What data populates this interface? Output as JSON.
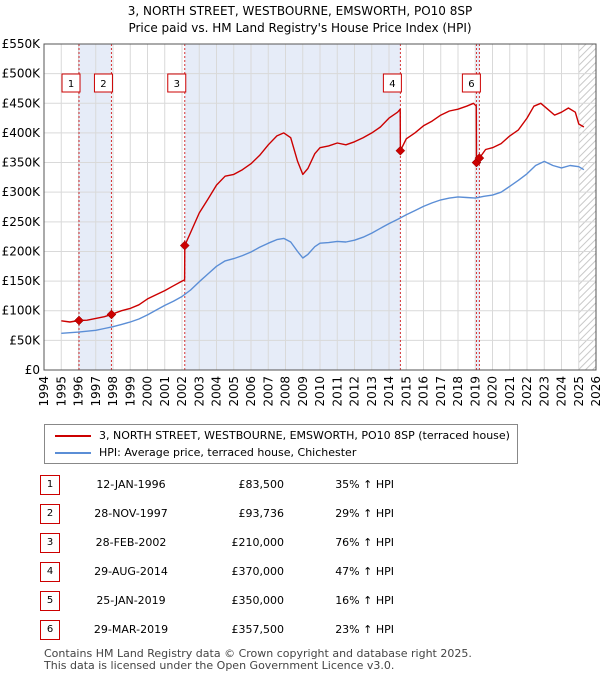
{
  "title_line1": "3, NORTH STREET, WESTBOURNE, EMSWORTH, PO10 8SP",
  "title_line2": "Price paid vs. HM Land Registry's House Price Index (HPI)",
  "colors": {
    "property": "#cc0000",
    "hpi": "#5b8ed6",
    "shade": "#e6ecf8",
    "grid": "#d9d9d9"
  },
  "chart_data": {
    "type": "line",
    "ylabel": "",
    "xlabel": "",
    "xlim": [
      1994,
      2026
    ],
    "ylim": [
      0,
      550000
    ],
    "y_ticks": [
      0,
      50000,
      100000,
      150000,
      200000,
      250000,
      300000,
      350000,
      400000,
      450000,
      500000,
      550000
    ],
    "y_tick_labels": [
      "£0",
      "£50K",
      "£100K",
      "£150K",
      "£200K",
      "£250K",
      "£300K",
      "£350K",
      "£400K",
      "£450K",
      "£500K",
      "£550K"
    ],
    "x_ticks": [
      1994,
      1995,
      1996,
      1997,
      1998,
      1999,
      2000,
      2001,
      2002,
      2003,
      2004,
      2005,
      2006,
      2007,
      2008,
      2009,
      2010,
      2011,
      2012,
      2013,
      2014,
      2015,
      2016,
      2017,
      2018,
      2019,
      2020,
      2021,
      2022,
      2023,
      2024,
      2025,
      2026
    ],
    "shaded_ranges": [
      [
        1996.03,
        1997.91
      ],
      [
        2002.16,
        2014.66
      ],
      [
        2019.07,
        2019.24
      ]
    ],
    "hatched_from": 2025.0,
    "series": [
      {
        "name": "3, NORTH STREET, WESTBOURNE, EMSWORTH, PO10 8SP (terraced house)",
        "x": [
          1995.0,
          1995.5,
          1996.03,
          1996.5,
          1997.0,
          1997.5,
          1997.91,
          1998.5,
          1999.0,
          1999.5,
          2000.0,
          2000.5,
          2001.0,
          2001.5,
          2002.0,
          2002.15,
          2002.16,
          2002.5,
          2003.0,
          2003.5,
          2004.0,
          2004.5,
          2005.0,
          2005.5,
          2006.0,
          2006.5,
          2007.0,
          2007.5,
          2007.9,
          2008.3,
          2008.7,
          2009.0,
          2009.3,
          2009.7,
          2010.0,
          2010.5,
          2011.0,
          2011.5,
          2012.0,
          2012.5,
          2013.0,
          2013.5,
          2014.0,
          2014.5,
          2014.65,
          2014.66,
          2015.0,
          2015.5,
          2016.0,
          2016.5,
          2017.0,
          2017.5,
          2018.0,
          2018.5,
          2018.9,
          2019.06,
          2019.07,
          2019.2,
          2019.24,
          2019.6,
          2020.0,
          2020.5,
          2021.0,
          2021.5,
          2022.0,
          2022.4,
          2022.8,
          2023.2,
          2023.6,
          2024.0,
          2024.4,
          2024.8,
          2025.0,
          2025.3
        ],
        "values": [
          83000,
          81000,
          83500,
          84000,
          87000,
          90000,
          93736,
          100000,
          104000,
          110000,
          120000,
          127000,
          134000,
          142000,
          150000,
          152000,
          210000,
          232000,
          265000,
          288000,
          312000,
          327000,
          330000,
          338000,
          348000,
          362000,
          380000,
          395000,
          400000,
          392000,
          352000,
          330000,
          340000,
          365000,
          375000,
          378000,
          383000,
          380000,
          385000,
          392000,
          400000,
          410000,
          425000,
          435000,
          440000,
          370000,
          390000,
          400000,
          412000,
          420000,
          430000,
          437000,
          440000,
          445000,
          450000,
          445000,
          350000,
          352000,
          357500,
          372000,
          375000,
          382000,
          395000,
          405000,
          425000,
          445000,
          450000,
          440000,
          430000,
          435000,
          442000,
          435000,
          415000,
          410000
        ]
      },
      {
        "name": "HPI: Average price, terraced house, Chichester",
        "x": [
          1995.0,
          1995.5,
          1996.0,
          1996.5,
          1997.0,
          1997.5,
          1998.0,
          1998.5,
          1999.0,
          1999.5,
          2000.0,
          2000.5,
          2001.0,
          2001.5,
          2002.0,
          2002.5,
          2003.0,
          2003.5,
          2004.0,
          2004.5,
          2005.0,
          2005.5,
          2006.0,
          2006.5,
          2007.0,
          2007.5,
          2007.9,
          2008.3,
          2008.7,
          2009.0,
          2009.3,
          2009.7,
          2010.0,
          2010.5,
          2011.0,
          2011.5,
          2012.0,
          2012.5,
          2013.0,
          2013.5,
          2014.0,
          2014.5,
          2015.0,
          2015.5,
          2016.0,
          2016.5,
          2017.0,
          2017.5,
          2018.0,
          2018.5,
          2019.0,
          2019.5,
          2020.0,
          2020.5,
          2021.0,
          2021.5,
          2022.0,
          2022.5,
          2023.0,
          2023.5,
          2024.0,
          2024.5,
          2025.0,
          2025.3
        ],
        "values": [
          62000,
          63000,
          64000,
          65500,
          67000,
          70000,
          73000,
          77000,
          81000,
          86000,
          93000,
          101000,
          109000,
          116000,
          124000,
          135000,
          149000,
          162000,
          175000,
          184000,
          188000,
          193000,
          199000,
          207000,
          214000,
          220000,
          222000,
          216000,
          200000,
          189000,
          195000,
          208000,
          214000,
          215000,
          217000,
          216000,
          219000,
          224000,
          231000,
          239000,
          247000,
          254000,
          262000,
          269000,
          276000,
          282000,
          287000,
          290000,
          292000,
          291000,
          290000,
          293000,
          295000,
          300000,
          310000,
          320000,
          331000,
          345000,
          352000,
          345000,
          341000,
          345000,
          343000,
          338000
        ]
      }
    ]
  },
  "markers": [
    {
      "num": "1",
      "x": 1996.03,
      "y": 83500
    },
    {
      "num": "2",
      "x": 1997.91,
      "y": 93736
    },
    {
      "num": "3",
      "x": 2002.16,
      "y": 210000
    },
    {
      "num": "4",
      "x": 2014.66,
      "y": 370000
    },
    {
      "num": "5",
      "x": 2019.07,
      "y": 350000
    },
    {
      "num": "6",
      "x": 2019.24,
      "y": 357500
    }
  ],
  "marker_labels_shown": [
    "1",
    "2",
    "3",
    "4",
    "6"
  ],
  "legend": {
    "property": "3, NORTH STREET, WESTBOURNE, EMSWORTH, PO10 8SP (terraced house)",
    "hpi": "HPI: Average price, terraced house, Chichester"
  },
  "transactions": [
    {
      "num": "1",
      "date": "12-JAN-1996",
      "price": "£83,500",
      "hpi": "35% ↑ HPI"
    },
    {
      "num": "2",
      "date": "28-NOV-1997",
      "price": "£93,736",
      "hpi": "29% ↑ HPI"
    },
    {
      "num": "3",
      "date": "28-FEB-2002",
      "price": "£210,000",
      "hpi": "76% ↑ HPI"
    },
    {
      "num": "4",
      "date": "29-AUG-2014",
      "price": "£370,000",
      "hpi": "47% ↑ HPI"
    },
    {
      "num": "5",
      "date": "25-JAN-2019",
      "price": "£350,000",
      "hpi": "16% ↑ HPI"
    },
    {
      "num": "6",
      "date": "29-MAR-2019",
      "price": "£357,500",
      "hpi": "23% ↑ HPI"
    }
  ],
  "footer_line1": "Contains HM Land Registry data © Crown copyright and database right 2025.",
  "footer_line2": "This data is licensed under the Open Government Licence v3.0."
}
